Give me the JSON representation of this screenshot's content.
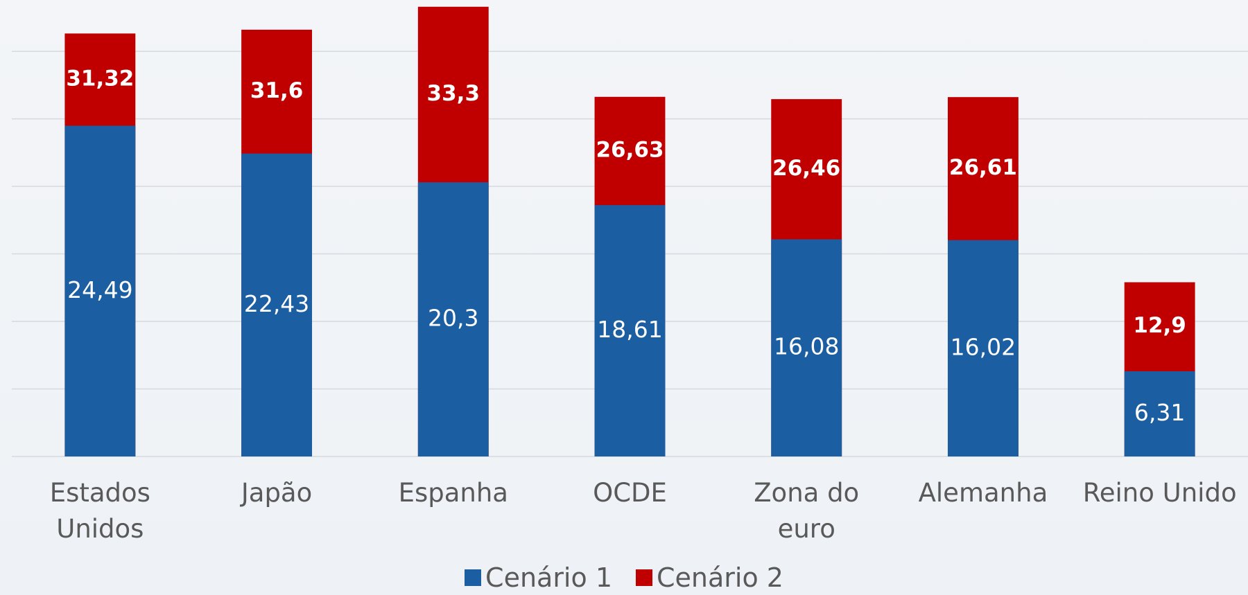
{
  "chart_data": {
    "type": "bar",
    "overlap": true,
    "categories": [
      "Estados Unidos",
      "Japão",
      "Espanha",
      "OCDE",
      "Zona do euro",
      "Alemanha",
      "Reino Unido"
    ],
    "series": [
      {
        "name": "Cenário 2",
        "color": "#c00000",
        "values": [
          31.32,
          31.6,
          33.3,
          26.63,
          26.46,
          26.61,
          12.9
        ],
        "value_labels": [
          "31,32",
          "31,6",
          "33,3",
          "26,63",
          "26,46",
          "26,61",
          "12,9"
        ]
      },
      {
        "name": "Cenário 1",
        "color": "#1b5ea2",
        "values": [
          24.49,
          22.43,
          20.3,
          18.61,
          16.08,
          16.02,
          6.31
        ],
        "value_labels": [
          "24,49",
          "22,43",
          "20,3",
          "18,61",
          "16,08",
          "16,02",
          "6,31"
        ]
      }
    ],
    "ylim": [
      0,
      33.8
    ],
    "yticks": [
      0,
      5,
      10,
      15,
      20,
      25,
      30
    ],
    "grid": true,
    "legend": "bottom"
  }
}
